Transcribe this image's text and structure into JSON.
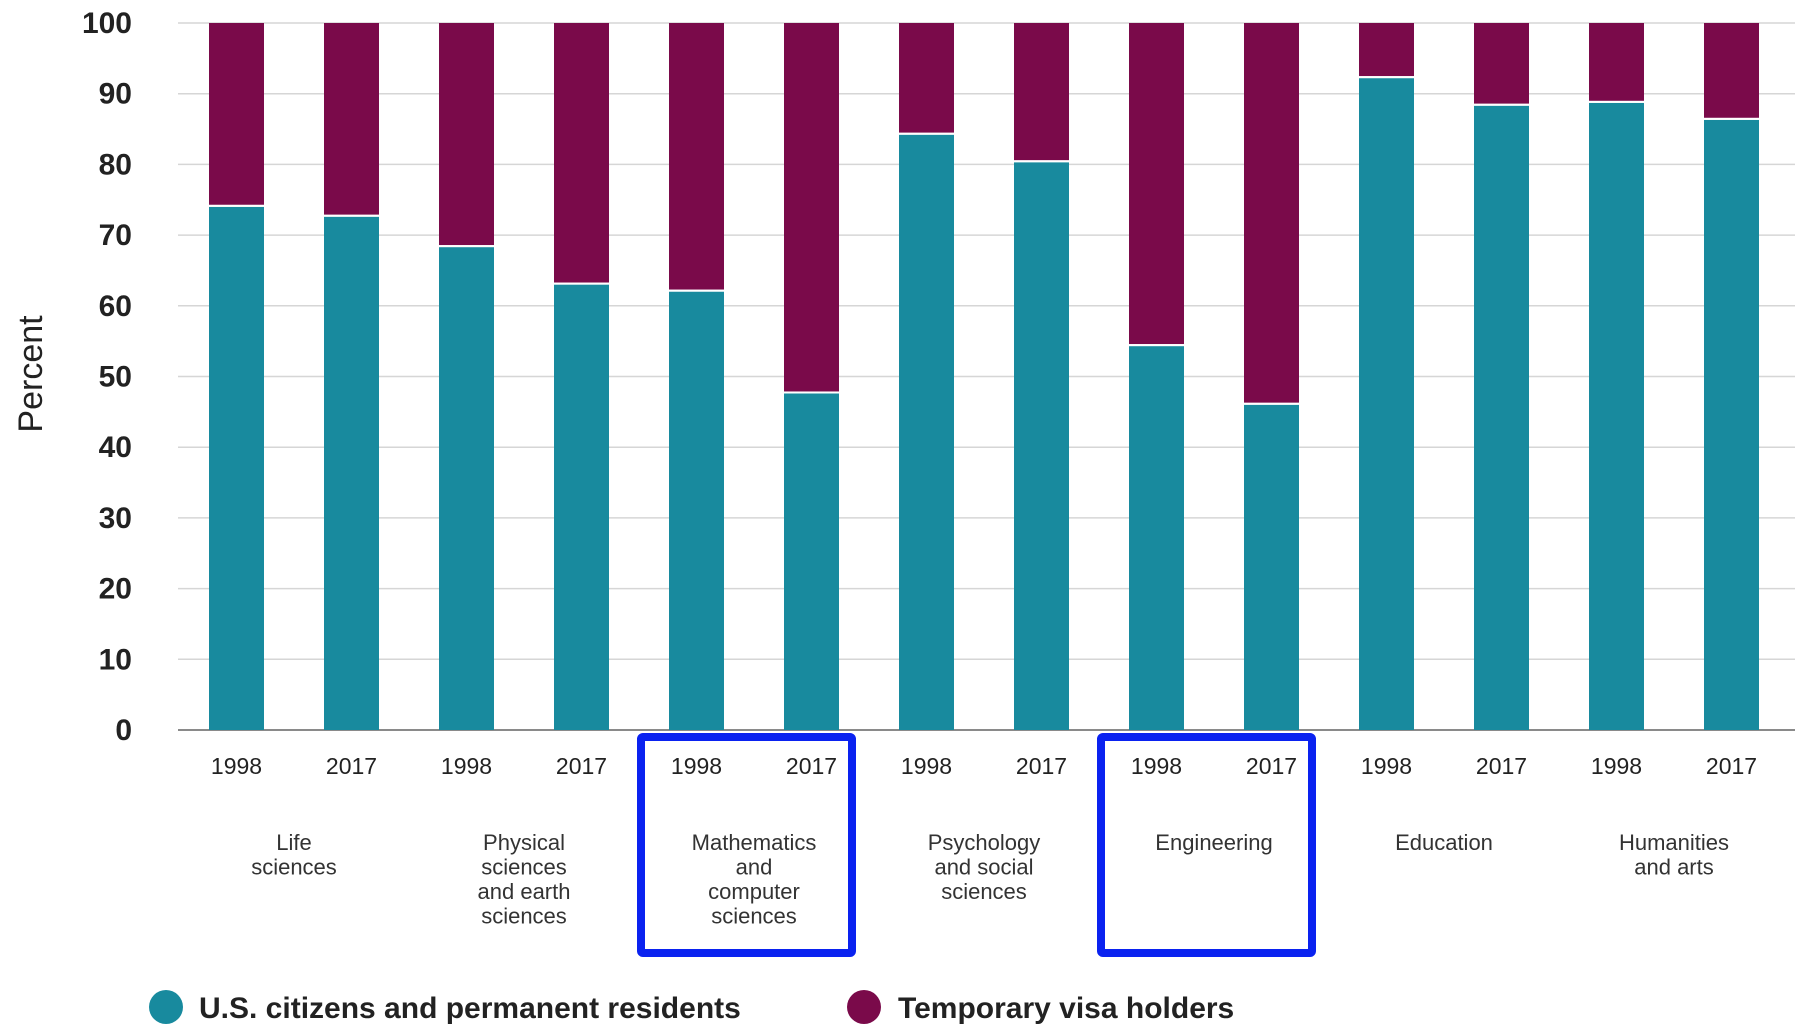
{
  "colors": {
    "us": "#188a9e",
    "visa": "#7a0a4a",
    "highlight": "#0a22f0",
    "grid": "#d6d6d6",
    "axis": "#8a8a8a"
  },
  "chart_data": {
    "type": "bar",
    "stacked": true,
    "ylabel": "Percent",
    "ylim": [
      0,
      100
    ],
    "yticks": [
      0,
      10,
      20,
      30,
      40,
      50,
      60,
      70,
      80,
      90,
      100
    ],
    "grid": true,
    "legend_position": "bottom-left",
    "groups": [
      {
        "label": [
          "Life",
          "sciences"
        ],
        "years": [
          "1998",
          "2017"
        ],
        "highlighted": false
      },
      {
        "label": [
          "Physical",
          "sciences",
          "and earth",
          "sciences"
        ],
        "years": [
          "1998",
          "2017"
        ],
        "highlighted": false
      },
      {
        "label": [
          "Mathematics",
          "and",
          "computer",
          "sciences"
        ],
        "years": [
          "1998",
          "2017"
        ],
        "highlighted": true
      },
      {
        "label": [
          "Psychology",
          "and social",
          "sciences"
        ],
        "years": [
          "1998",
          "2017"
        ],
        "highlighted": false
      },
      {
        "label": [
          "Engineering"
        ],
        "years": [
          "1998",
          "2017"
        ],
        "highlighted": true
      },
      {
        "label": [
          "Education"
        ],
        "years": [
          "1998",
          "2017"
        ],
        "highlighted": false
      },
      {
        "label": [
          "Humanities",
          "and arts"
        ],
        "years": [
          "1998",
          "2017"
        ],
        "highlighted": false
      }
    ],
    "series": [
      {
        "name": "U.S. citizens and permanent residents",
        "color_key": "us",
        "values": [
          74,
          72.6,
          68.3,
          63,
          62,
          47.6,
          84.2,
          80.3,
          54.3,
          46,
          92.2,
          88.3,
          88.7,
          86.3
        ]
      },
      {
        "name": "Temporary visa holders",
        "color_key": "visa",
        "values": [
          26,
          27.4,
          31.7,
          37,
          38,
          52.4,
          15.8,
          19.7,
          45.7,
          54,
          7.8,
          11.7,
          11.3,
          13.7
        ]
      }
    ]
  }
}
